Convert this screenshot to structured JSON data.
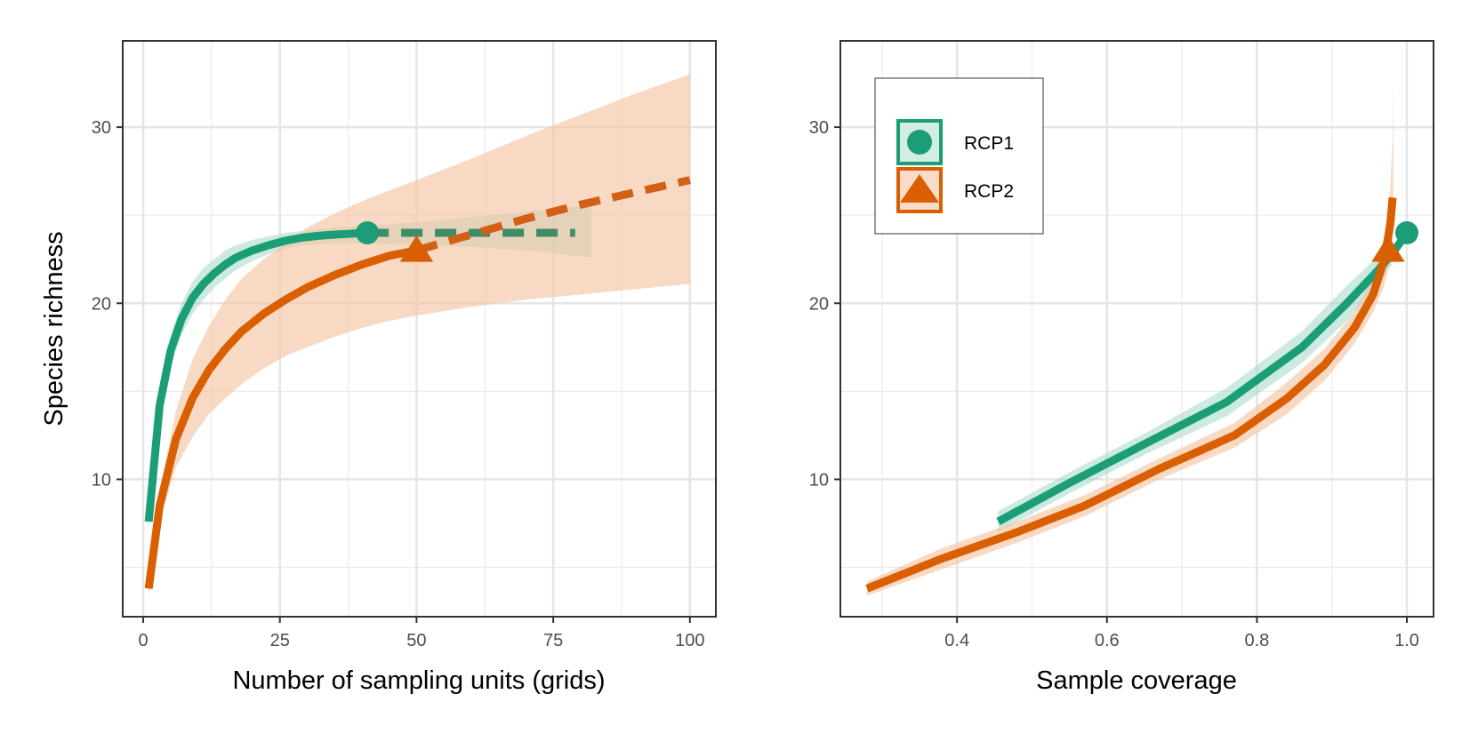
{
  "colors": {
    "rcp1": "#1b9e77",
    "rcp2": "#d95f02",
    "rcp1_band": "#a3d9c6",
    "rcp2_band": "#f4c4a3",
    "overlap_band": "#c8d0b3",
    "rcp1_extrap": "#3f8c66",
    "rcp2_extrap": "#d46017"
  },
  "legend": {
    "placement": "top-left",
    "items": [
      {
        "label": "RCP1",
        "shape": "circle"
      },
      {
        "label": "RCP2",
        "shape": "triangle"
      }
    ]
  },
  "chart_data": [
    {
      "type": "line",
      "xlabel": "Number of sampling units (grids)",
      "ylabel": "Species richness",
      "xlim": [
        -3.75,
        104.75
      ],
      "ylim": [
        2.2,
        34.9
      ],
      "xticks": [
        0,
        25,
        50,
        75,
        100
      ],
      "xtick_labels": [
        "0",
        "25",
        "50",
        "75",
        "100"
      ],
      "yticks": [
        10,
        20,
        30
      ],
      "ytick_labels": [
        "10",
        "20",
        "30"
      ],
      "grid": true,
      "series": [
        {
          "name": "RCP1",
          "color_key": "rcp1",
          "observed_point": [
            41,
            24
          ],
          "marker": "circle",
          "rarefaction": {
            "x": [
              1,
              3,
              5,
              7,
              9,
              11,
              13,
              15,
              17,
              20,
              23,
              26,
              29,
              32,
              35,
              38,
              41
            ],
            "y": [
              7.6,
              14.2,
              17.3,
              19.1,
              20.3,
              21.1,
              21.7,
              22.2,
              22.6,
              23.0,
              23.3,
              23.55,
              23.72,
              23.83,
              23.9,
              23.95,
              24.0
            ]
          },
          "extrapolation": {
            "x": [
              41,
              50,
              60,
              70,
              79
            ],
            "y": [
              24.0,
              24.0,
              24.0,
              24.0,
              24.0
            ]
          },
          "band": {
            "x": [
              1,
              3,
              5,
              7,
              9,
              11,
              13,
              15,
              17,
              20,
              23,
              26,
              29,
              32,
              35,
              38,
              41,
              50,
              60,
              70,
              82
            ],
            "lower": [
              7.1,
              13.4,
              16.4,
              18.2,
              19.4,
              20.2,
              20.9,
              21.4,
              21.9,
              22.4,
              22.8,
              23.1,
              23.3,
              23.35,
              23.4,
              23.4,
              23.4,
              23.3,
              23.2,
              23.0,
              22.6
            ],
            "upper": [
              8.1,
              15.0,
              18.2,
              20.0,
              21.2,
              22.0,
              22.5,
              23.0,
              23.3,
              23.6,
              23.8,
              24.0,
              24.1,
              24.2,
              24.3,
              24.35,
              24.4,
              24.6,
              24.9,
              25.2,
              25.6
            ]
          }
        },
        {
          "name": "RCP2",
          "color_key": "rcp2",
          "observed_point": [
            50,
            23
          ],
          "marker": "triangle",
          "rarefaction": {
            "x": [
              1,
              3,
              6,
              9,
              12,
              15,
              18,
              22,
              26,
              30,
              35,
              40,
              45,
              50
            ],
            "y": [
              3.8,
              8.5,
              12.3,
              14.6,
              16.2,
              17.4,
              18.4,
              19.4,
              20.2,
              20.9,
              21.6,
              22.2,
              22.7,
              23.0
            ]
          },
          "extrapolation": {
            "x": [
              50,
              60,
              70,
              80,
              90,
              100
            ],
            "y": [
              23.0,
              23.9,
              24.8,
              25.6,
              26.3,
              27.0
            ]
          },
          "band": {
            "x": [
              1,
              3,
              6,
              9,
              12,
              15,
              18,
              22,
              26,
              30,
              35,
              40,
              45,
              50,
              60,
              70,
              80,
              90,
              100
            ],
            "lower": [
              3.4,
              7.6,
              10.7,
              12.4,
              13.7,
              14.6,
              15.4,
              16.3,
              17.0,
              17.5,
              18.1,
              18.6,
              19.0,
              19.3,
              19.8,
              20.2,
              20.5,
              20.8,
              21.1
            ],
            "upper": [
              4.2,
              9.4,
              13.9,
              16.8,
              18.7,
              20.2,
              21.4,
              22.5,
              23.4,
              24.3,
              25.1,
              25.8,
              26.4,
              27.0,
              28.2,
              29.5,
              30.7,
              31.9,
              33.0
            ]
          }
        }
      ]
    },
    {
      "type": "line",
      "xlabel": "Sample coverage",
      "ylabel": "",
      "xlim": [
        0.2444,
        1.0356
      ],
      "ylim": [
        2.2,
        34.9
      ],
      "xticks": [
        0.4,
        0.6,
        0.8,
        1.0
      ],
      "xtick_labels": [
        "0.4",
        "0.6",
        "0.8",
        "1.0"
      ],
      "yticks": [
        10,
        20,
        30
      ],
      "ytick_labels": [
        "10",
        "20",
        "30"
      ],
      "grid": true,
      "series": [
        {
          "name": "RCP1",
          "color_key": "rcp1",
          "observed_point": [
            1.0,
            24
          ],
          "marker": "circle",
          "line": {
            "x": [
              0.455,
              0.55,
              0.65,
              0.76,
              0.86,
              0.92,
              0.96,
              0.98,
              0.992,
              1.0
            ],
            "y": [
              7.6,
              9.8,
              12.0,
              14.4,
              17.5,
              20.0,
              21.8,
              22.8,
              23.5,
              24.0
            ]
          },
          "band": {
            "x": [
              0.455,
              0.55,
              0.65,
              0.76,
              0.86,
              0.92,
              0.96,
              0.98
            ],
            "lower": [
              7.0,
              9.2,
              11.4,
              13.6,
              16.6,
              19.0,
              21.0,
              22.2
            ],
            "upper": [
              8.2,
              10.4,
              12.6,
              15.2,
              18.4,
              21.0,
              22.6,
              23.6
            ]
          }
        },
        {
          "name": "RCP2",
          "color_key": "rcp2",
          "observed_point": [
            0.975,
            23
          ],
          "marker": "triangle",
          "line": {
            "x": [
              0.28,
              0.38,
              0.48,
              0.57,
              0.67,
              0.77,
              0.84,
              0.89,
              0.93,
              0.955,
              0.97,
              0.978,
              0.981
            ],
            "y": [
              3.8,
              5.5,
              7.0,
              8.5,
              10.6,
              12.5,
              14.6,
              16.5,
              18.6,
              20.5,
              22.5,
              24.5,
              26.0
            ]
          },
          "band": {
            "x": [
              0.28,
              0.38,
              0.48,
              0.57,
              0.67,
              0.77,
              0.84,
              0.89,
              0.93,
              0.955,
              0.97,
              0.978,
              0.981,
              0.982
            ],
            "lower": [
              3.4,
              4.9,
              6.4,
              7.9,
              10.0,
              11.8,
              13.7,
              15.6,
              17.7,
              19.5,
              21.0,
              22.5,
              23.5,
              24.5
            ],
            "upper": [
              4.2,
              6.1,
              7.6,
              9.1,
              11.2,
              13.2,
              15.5,
              17.4,
              19.5,
              21.5,
              23.8,
              26.5,
              29.5,
              32.5
            ]
          }
        }
      ]
    }
  ]
}
